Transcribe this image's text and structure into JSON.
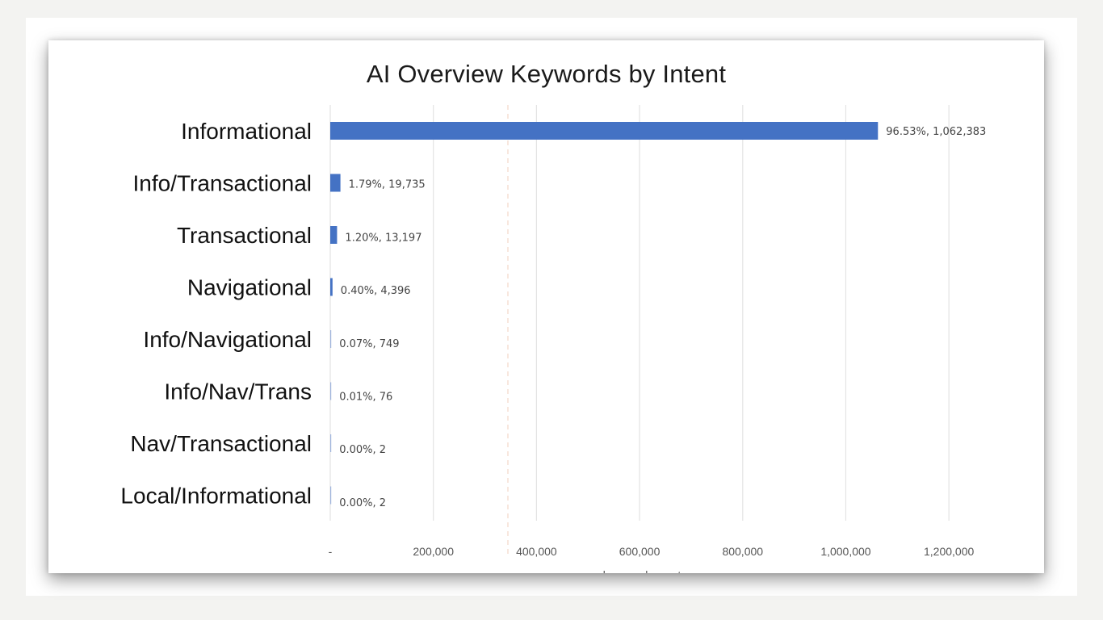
{
  "chart_data": {
    "type": "bar",
    "orientation": "horizontal",
    "title": "AI Overview Keywords by Intent",
    "xlabel": "keyword count",
    "ylabel": "",
    "xlim": [
      0,
      1300000
    ],
    "x_ticks": [
      0,
      200000,
      400000,
      600000,
      800000,
      1000000,
      1200000
    ],
    "x_tick_labels": [
      "-",
      "200,000",
      "400,000",
      "600,000",
      "800,000",
      "1,000,000",
      "1,200,000"
    ],
    "grid": "vertical",
    "legend": "none",
    "bar_color": "#4472c4",
    "categories": [
      "Informational",
      "Info/Transactional",
      "Transactional",
      "Navigational",
      "Info/Navigational",
      "Info/Nav/Trans",
      "Nav/Transactional",
      "Local/Informational"
    ],
    "values": [
      1062383,
      19735,
      13197,
      4396,
      749,
      76,
      2,
      2
    ],
    "data_labels": [
      "96.53%, 1,062,383",
      "1.79%, 19,735",
      "1.20%, 13,197",
      "0.40%, 4,396",
      "0.07%, 749",
      "0.01%, 76",
      "0.00%, 2",
      "0.00%, 2"
    ]
  }
}
